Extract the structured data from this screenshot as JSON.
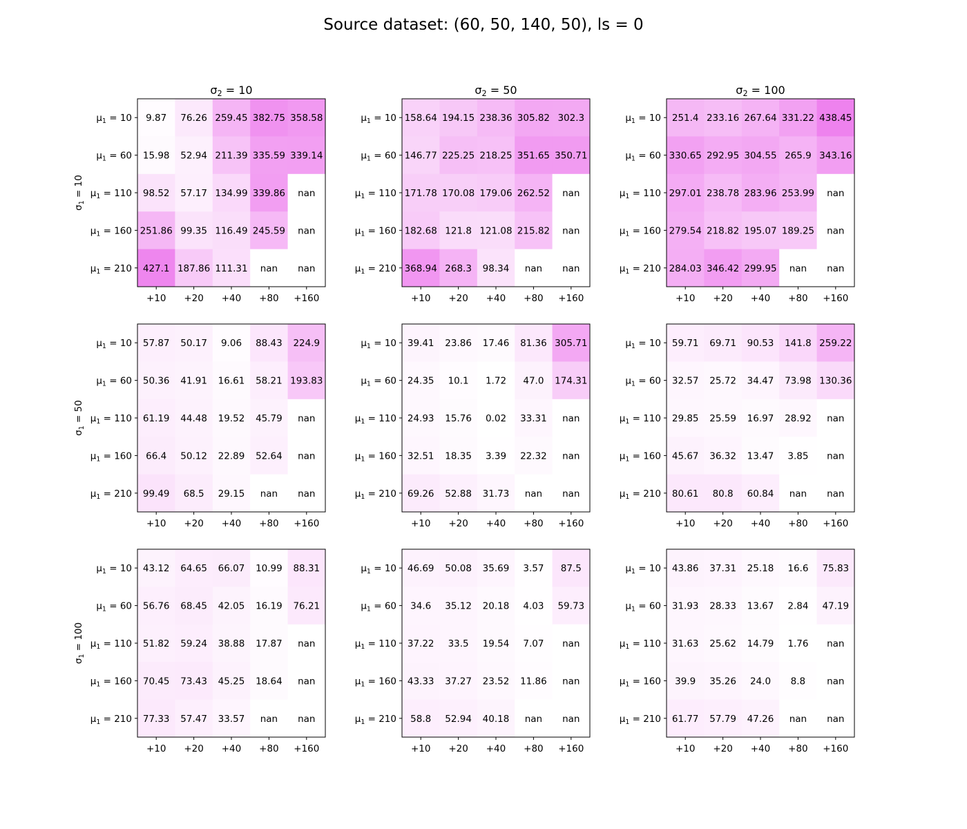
{
  "chart_data": {
    "type": "heatmap",
    "title": "Source dataset: (60, 50, 140, 50), ls = 0",
    "colormap": {
      "low": "#ffffff",
      "high": "#ee82ee"
    },
    "value_range": [
      0,
      440
    ],
    "column_titles": [
      "σ2 = 10",
      "σ2 = 50",
      "σ2 = 100"
    ],
    "row_titles": [
      "σ1 = 10",
      "σ1 = 50",
      "σ1 = 100"
    ],
    "x_ticks": [
      "+10",
      "+20",
      "+40",
      "+80",
      "+160"
    ],
    "y_ticks": [
      "μ1 = 10",
      "μ1 = 60",
      "μ1 = 110",
      "μ1 = 160",
      "μ1 = 210"
    ],
    "panels": [
      [
        [
          [
            "9.87",
            "76.26",
            "259.45",
            "382.75",
            "358.58"
          ],
          [
            "15.98",
            "52.94",
            "211.39",
            "335.59",
            "339.14"
          ],
          [
            "98.52",
            "57.17",
            "134.99",
            "339.86",
            "nan"
          ],
          [
            "251.86",
            "99.35",
            "116.49",
            "245.59",
            "nan"
          ],
          [
            "427.1",
            "187.86",
            "111.31",
            "nan",
            "nan"
          ]
        ],
        [
          [
            "158.64",
            "194.15",
            "238.36",
            "305.82",
            "302.3"
          ],
          [
            "146.77",
            "225.25",
            "218.25",
            "351.65",
            "350.71"
          ],
          [
            "171.78",
            "170.08",
            "179.06",
            "262.52",
            "nan"
          ],
          [
            "182.68",
            "121.8",
            "121.08",
            "215.82",
            "nan"
          ],
          [
            "368.94",
            "268.3",
            "98.34",
            "nan",
            "nan"
          ]
        ],
        [
          [
            "251.4",
            "233.16",
            "267.64",
            "331.22",
            "438.45"
          ],
          [
            "330.65",
            "292.95",
            "304.55",
            "265.9",
            "343.16"
          ],
          [
            "297.01",
            "238.78",
            "283.96",
            "253.99",
            "nan"
          ],
          [
            "279.54",
            "218.82",
            "195.07",
            "189.25",
            "nan"
          ],
          [
            "284.03",
            "346.42",
            "299.95",
            "nan",
            "nan"
          ]
        ]
      ],
      [
        [
          [
            "57.87",
            "50.17",
            "9.06",
            "88.43",
            "224.9"
          ],
          [
            "50.36",
            "41.91",
            "16.61",
            "58.21",
            "193.83"
          ],
          [
            "61.19",
            "44.48",
            "19.52",
            "45.79",
            "nan"
          ],
          [
            "66.4",
            "50.12",
            "22.89",
            "52.64",
            "nan"
          ],
          [
            "99.49",
            "68.5",
            "29.15",
            "nan",
            "nan"
          ]
        ],
        [
          [
            "39.41",
            "23.86",
            "17.46",
            "81.36",
            "305.71"
          ],
          [
            "24.35",
            "10.1",
            "1.72",
            "47.0",
            "174.31"
          ],
          [
            "24.93",
            "15.76",
            "0.02",
            "33.31",
            "nan"
          ],
          [
            "32.51",
            "18.35",
            "3.39",
            "22.32",
            "nan"
          ],
          [
            "69.26",
            "52.88",
            "31.73",
            "nan",
            "nan"
          ]
        ],
        [
          [
            "59.71",
            "69.71",
            "90.53",
            "141.8",
            "259.22"
          ],
          [
            "32.57",
            "25.72",
            "34.47",
            "73.98",
            "130.36"
          ],
          [
            "29.85",
            "25.59",
            "16.97",
            "28.92",
            "nan"
          ],
          [
            "45.67",
            "36.32",
            "13.47",
            "3.85",
            "nan"
          ],
          [
            "80.61",
            "80.8",
            "60.84",
            "nan",
            "nan"
          ]
        ]
      ],
      [
        [
          [
            "43.12",
            "64.65",
            "66.07",
            "10.99",
            "88.31"
          ],
          [
            "56.76",
            "68.45",
            "42.05",
            "16.19",
            "76.21"
          ],
          [
            "51.82",
            "59.24",
            "38.88",
            "17.87",
            "nan"
          ],
          [
            "70.45",
            "73.43",
            "45.25",
            "18.64",
            "nan"
          ],
          [
            "77.33",
            "57.47",
            "33.57",
            "nan",
            "nan"
          ]
        ],
        [
          [
            "46.69",
            "50.08",
            "35.69",
            "3.57",
            "87.5"
          ],
          [
            "34.6",
            "35.12",
            "20.18",
            "4.03",
            "59.73"
          ],
          [
            "37.22",
            "33.5",
            "19.54",
            "7.07",
            "nan"
          ],
          [
            "43.33",
            "37.27",
            "23.52",
            "11.86",
            "nan"
          ],
          [
            "58.8",
            "52.94",
            "40.18",
            "nan",
            "nan"
          ]
        ],
        [
          [
            "43.86",
            "37.31",
            "25.18",
            "16.6",
            "75.83"
          ],
          [
            "31.93",
            "28.33",
            "13.67",
            "2.84",
            "47.19"
          ],
          [
            "31.63",
            "25.62",
            "14.79",
            "1.76",
            "nan"
          ],
          [
            "39.9",
            "35.26",
            "24.0",
            "8.8",
            "nan"
          ],
          [
            "61.77",
            "57.79",
            "47.26",
            "nan",
            "nan"
          ]
        ]
      ]
    ]
  }
}
